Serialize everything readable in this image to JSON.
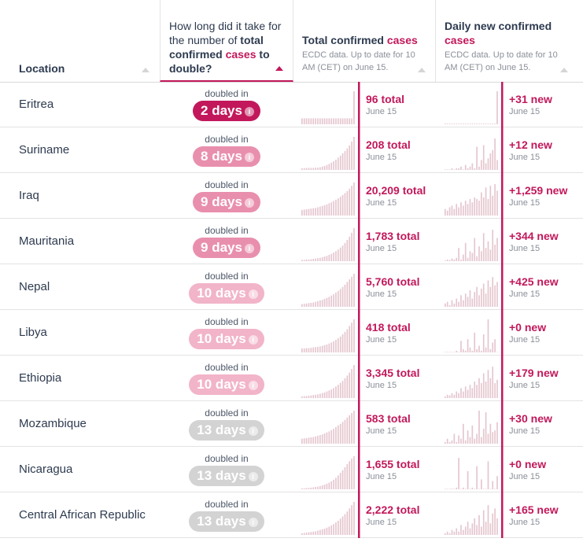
{
  "header": {
    "location": "Location",
    "doubling_pre": "How long did it take for the number of ",
    "doubling_bold": "total confirmed",
    "doubling_pink": "cases",
    "doubling_post": "to double?",
    "total_title": "Total confirmed",
    "total_pink": "cases",
    "total_sub": "ECDC data. Up to date for 10 AM (CET) on June 15.",
    "new_title": "Daily new confirmed",
    "new_pink": "cases",
    "new_sub": "ECDC data. Up to date for 10 AM (CET) on June 15."
  },
  "doubled_caption": "doubled in",
  "date_label": "June 15",
  "colors": {
    "accent": "#c2185b",
    "bar": "#e5c6cf",
    "pill_dark": "#c2185b",
    "pill_mid": "#e98fae",
    "pill_light": "#f2b4c8",
    "pill_gray": "#d3d3d3"
  },
  "rows": [
    {
      "location": "Eritrea",
      "doubling": "2 days",
      "level": "dark",
      "total": "96 total",
      "new": "+31 new",
      "tot_series": [
        0.18,
        0.18,
        0.18,
        0.18,
        0.18,
        0.18,
        0.18,
        0.18,
        0.18,
        0.18,
        0.18,
        0.18,
        0.18,
        0.18,
        0.18,
        0.18,
        0.18,
        0.18,
        0.18,
        0.18,
        0.18,
        0.18,
        0.18,
        1.0
      ],
      "new_series": [
        0.02,
        0.02,
        0.02,
        0.02,
        0.02,
        0.02,
        0.02,
        0.02,
        0.02,
        0.02,
        0.02,
        0.02,
        0.02,
        0.02,
        0.02,
        0.02,
        0.02,
        0.02,
        0.02,
        0.02,
        0.02,
        0.02,
        0.02,
        1.0
      ]
    },
    {
      "location": "Suriname",
      "doubling": "8 days",
      "level": "mid",
      "total": "208 total",
      "new": "+12 new",
      "tot_series": [
        0.05,
        0.05,
        0.06,
        0.06,
        0.06,
        0.06,
        0.07,
        0.07,
        0.08,
        0.1,
        0.12,
        0.15,
        0.18,
        0.22,
        0.26,
        0.31,
        0.37,
        0.43,
        0.5,
        0.57,
        0.65,
        0.74,
        0.86,
        1.0
      ],
      "new_series": [
        0,
        0,
        0,
        0.05,
        0,
        0.05,
        0.05,
        0.1,
        0,
        0.15,
        0.05,
        0.1,
        0.2,
        0.05,
        0.7,
        0.1,
        0.3,
        0.75,
        0.2,
        0.35,
        0.5,
        0.6,
        0.95,
        0.3
      ]
    },
    {
      "location": "Iraq",
      "doubling": "9 days",
      "level": "mid",
      "total": "20,209 total",
      "new": "+1,259 new",
      "tot_series": [
        0.17,
        0.18,
        0.19,
        0.2,
        0.21,
        0.22,
        0.23,
        0.25,
        0.27,
        0.29,
        0.31,
        0.34,
        0.37,
        0.4,
        0.44,
        0.48,
        0.52,
        0.57,
        0.62,
        0.68,
        0.74,
        0.81,
        0.9,
        1.0
      ],
      "new_series": [
        0.2,
        0.15,
        0.25,
        0.3,
        0.2,
        0.35,
        0.25,
        0.4,
        0.3,
        0.45,
        0.35,
        0.5,
        0.4,
        0.55,
        0.5,
        0.45,
        0.7,
        0.55,
        0.85,
        0.5,
        0.9,
        0.6,
        0.95,
        0.75
      ]
    },
    {
      "location": "Mauritania",
      "doubling": "9 days",
      "level": "mid",
      "total": "1,783 total",
      "new": "+344 new",
      "tot_series": [
        0.04,
        0.04,
        0.05,
        0.05,
        0.06,
        0.07,
        0.08,
        0.09,
        0.1,
        0.12,
        0.14,
        0.16,
        0.19,
        0.22,
        0.26,
        0.3,
        0.35,
        0.41,
        0.47,
        0.55,
        0.64,
        0.74,
        0.86,
        1.0
      ],
      "new_series": [
        0.02,
        0.05,
        0.03,
        0.08,
        0.05,
        0.1,
        0.4,
        0.05,
        0.2,
        0.55,
        0.1,
        0.3,
        0.25,
        0.7,
        0.15,
        0.45,
        0.3,
        0.85,
        0.4,
        0.6,
        0.35,
        0.95,
        0.5,
        0.7
      ]
    },
    {
      "location": "Nepal",
      "doubling": "10 days",
      "level": "light",
      "total": "5,760 total",
      "new": "+425 new",
      "tot_series": [
        0.08,
        0.09,
        0.1,
        0.11,
        0.12,
        0.13,
        0.15,
        0.17,
        0.19,
        0.21,
        0.24,
        0.27,
        0.3,
        0.34,
        0.38,
        0.43,
        0.48,
        0.54,
        0.6,
        0.67,
        0.75,
        0.83,
        0.91,
        1.0
      ],
      "new_series": [
        0.1,
        0.15,
        0.05,
        0.2,
        0.1,
        0.25,
        0.15,
        0.35,
        0.2,
        0.4,
        0.3,
        0.5,
        0.25,
        0.45,
        0.6,
        0.35,
        0.55,
        0.7,
        0.4,
        0.8,
        0.6,
        0.9,
        0.65,
        0.75
      ]
    },
    {
      "location": "Libya",
      "doubling": "10 days",
      "level": "light",
      "total": "418 total",
      "new": "+0 new",
      "tot_series": [
        0.12,
        0.12,
        0.13,
        0.13,
        0.14,
        0.15,
        0.16,
        0.17,
        0.18,
        0.2,
        0.22,
        0.24,
        0.27,
        0.3,
        0.34,
        0.38,
        0.43,
        0.48,
        0.55,
        0.62,
        0.7,
        0.8,
        0.9,
        1.0
      ],
      "new_series": [
        0,
        0,
        0,
        0,
        0,
        0.05,
        0,
        0.35,
        0.1,
        0.05,
        0.4,
        0.15,
        0.05,
        0.6,
        0.1,
        0.2,
        0.05,
        0.55,
        0.15,
        1.0,
        0.1,
        0.3,
        0.4,
        0
      ]
    },
    {
      "location": "Ethiopia",
      "doubling": "10 days",
      "level": "light",
      "total": "3,345 total",
      "new": "+179 new",
      "tot_series": [
        0.05,
        0.06,
        0.06,
        0.07,
        0.08,
        0.09,
        0.1,
        0.11,
        0.13,
        0.15,
        0.17,
        0.2,
        0.23,
        0.26,
        0.3,
        0.35,
        0.4,
        0.46,
        0.52,
        0.6,
        0.68,
        0.77,
        0.88,
        1.0
      ],
      "new_series": [
        0.05,
        0.1,
        0.08,
        0.15,
        0.1,
        0.2,
        0.15,
        0.3,
        0.2,
        0.35,
        0.25,
        0.4,
        0.3,
        0.5,
        0.4,
        0.6,
        0.45,
        0.75,
        0.5,
        0.85,
        0.6,
        0.95,
        0.45,
        0.55
      ]
    },
    {
      "location": "Mozambique",
      "doubling": "13 days",
      "level": "gray",
      "total": "583 total",
      "new": "+30 new",
      "tot_series": [
        0.15,
        0.16,
        0.17,
        0.18,
        0.19,
        0.2,
        0.22,
        0.24,
        0.26,
        0.28,
        0.31,
        0.34,
        0.37,
        0.41,
        0.45,
        0.5,
        0.55,
        0.6,
        0.66,
        0.72,
        0.79,
        0.86,
        0.93,
        1.0
      ],
      "new_series": [
        0.05,
        0.15,
        0.05,
        0.1,
        0.3,
        0.05,
        0.25,
        0.15,
        0.6,
        0.1,
        0.4,
        0.2,
        0.55,
        0.15,
        0.3,
        1.0,
        0.2,
        0.45,
        0.95,
        0.3,
        0.6,
        0.35,
        0.4,
        0.65
      ]
    },
    {
      "location": "Nicaragua",
      "doubling": "13 days",
      "level": "gray",
      "total": "1,655 total",
      "new": "+0 new",
      "tot_series": [
        0.03,
        0.03,
        0.04,
        0.04,
        0.05,
        0.06,
        0.07,
        0.08,
        0.1,
        0.12,
        0.14,
        0.17,
        0.2,
        0.24,
        0.29,
        0.35,
        0.42,
        0.5,
        0.58,
        0.67,
        0.76,
        0.85,
        0.93,
        1.0
      ],
      "new_series": [
        0,
        0,
        0,
        0.02,
        0,
        0.05,
        0.95,
        0,
        0.05,
        0,
        0.55,
        0,
        0.05,
        0,
        0.7,
        0,
        0.3,
        0,
        0,
        0.85,
        0,
        0.25,
        0,
        0.4
      ]
    },
    {
      "location": "Central African Republic",
      "doubling": "13 days",
      "level": "gray",
      "total": "2,222 total",
      "new": "+165 new",
      "tot_series": [
        0.05,
        0.06,
        0.07,
        0.08,
        0.09,
        0.1,
        0.11,
        0.13,
        0.15,
        0.17,
        0.19,
        0.22,
        0.25,
        0.29,
        0.33,
        0.38,
        0.43,
        0.49,
        0.56,
        0.63,
        0.71,
        0.8,
        0.9,
        1.0
      ],
      "new_series": [
        0.05,
        0.1,
        0.05,
        0.15,
        0.1,
        0.2,
        0.1,
        0.3,
        0.15,
        0.25,
        0.4,
        0.2,
        0.35,
        0.5,
        0.3,
        0.6,
        0.25,
        0.75,
        0.4,
        0.9,
        0.35,
        0.65,
        0.8,
        0.5
      ]
    }
  ]
}
